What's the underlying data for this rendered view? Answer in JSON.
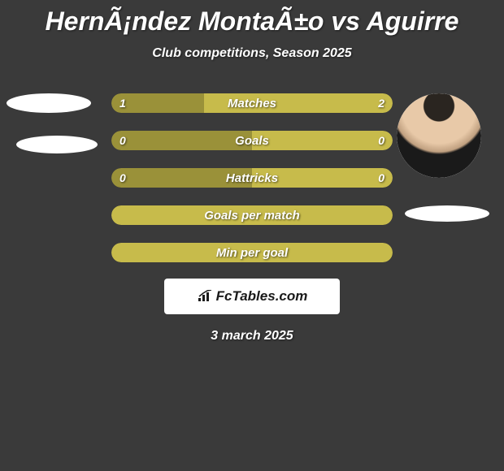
{
  "title": "HernÃ¡ndez MontaÃ±o vs Aguirre",
  "subtitle": "Club competitions, Season 2025",
  "date": "3 march 2025",
  "logo_text": "FcTables.com",
  "colors": {
    "background": "#3a3a3a",
    "bar_dark": "#9a9139",
    "bar_light": "#c7bb4b",
    "text": "#ffffff"
  },
  "bars": [
    {
      "label": "Matches",
      "left_value": "1",
      "right_value": "2",
      "left_pct": 33,
      "right_pct": 67,
      "left_color": "#9a9139",
      "right_color": "#c7bb4b",
      "show_values": true
    },
    {
      "label": "Goals",
      "left_value": "0",
      "right_value": "0",
      "left_pct": 50,
      "right_pct": 50,
      "left_color": "#9a9139",
      "right_color": "#c7bb4b",
      "show_values": true
    },
    {
      "label": "Hattricks",
      "left_value": "0",
      "right_value": "0",
      "left_pct": 50,
      "right_pct": 50,
      "left_color": "#9a9139",
      "right_color": "#c7bb4b",
      "show_values": true
    },
    {
      "label": "Goals per match",
      "left_value": "",
      "right_value": "",
      "left_pct": 100,
      "right_pct": 0,
      "left_color": "#c7bb4b",
      "right_color": "#c7bb4b",
      "show_values": false
    },
    {
      "label": "Min per goal",
      "left_value": "",
      "right_value": "",
      "left_pct": 100,
      "right_pct": 0,
      "left_color": "#c7bb4b",
      "right_color": "#c7bb4b",
      "show_values": false
    }
  ]
}
